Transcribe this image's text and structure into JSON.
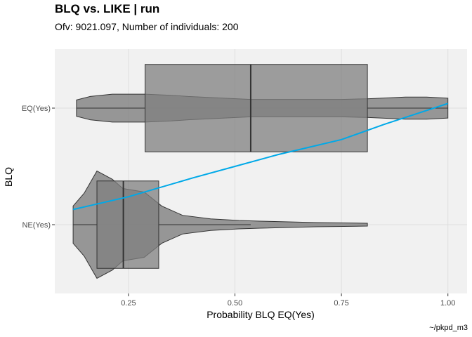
{
  "title": "BLQ vs. LIKE | run",
  "subtitle": "Ofv: 9021.097, Number of individuals: 200",
  "caption": "~/pkpd_m3",
  "colors": {
    "panel": "#f1f1f1",
    "grid": "#dedede",
    "fill": "#7f7f7f",
    "outline": "#333333",
    "trend": "#00a9e8"
  },
  "chart_data": {
    "type": "violin+boxplot",
    "title": "BLQ vs. LIKE | run",
    "xlabel": "Probability BLQ EQ(Yes)",
    "ylabel": "BLQ",
    "xlim": [
      0.077,
      1.045
    ],
    "xticks": [
      0.25,
      0.5,
      0.75,
      1.0
    ],
    "xtick_labels": [
      "0.25",
      "0.50",
      "0.75",
      "1.00"
    ],
    "categories": [
      "NE(Yes)",
      "EQ(Yes)"
    ],
    "grid": true,
    "boxes": [
      {
        "category": "NE(Yes)",
        "whisker_low": 0.12,
        "q1": 0.176,
        "median": 0.238,
        "q3": 0.321,
        "whisker_high": 0.537
      },
      {
        "category": "EQ(Yes)",
        "whisker_low": 0.128,
        "q1": 0.289,
        "median": 0.537,
        "q3": 0.811,
        "whisker_high": 1.0
      }
    ],
    "violins": [
      {
        "category": "NE(Yes)",
        "x": [
          0.12,
          0.146,
          0.176,
          0.212,
          0.237,
          0.287,
          0.328,
          0.377,
          0.443,
          0.509,
          0.559,
          0.691,
          0.811
        ],
        "density_halfwidth": [
          0.16,
          0.27,
          0.46,
          0.39,
          0.31,
          0.28,
          0.16,
          0.08,
          0.05,
          0.036,
          0.03,
          0.018,
          0.012
        ]
      },
      {
        "category": "EQ(Yes)",
        "x": [
          0.128,
          0.16,
          0.212,
          0.289,
          0.35,
          0.39,
          0.537,
          0.75,
          0.81,
          0.9,
          0.95,
          1.0
        ],
        "density_halfwidth": [
          0.07,
          0.1,
          0.12,
          0.12,
          0.11,
          0.1,
          0.075,
          0.075,
          0.08,
          0.095,
          0.095,
          0.085
        ]
      }
    ],
    "trend": {
      "x": [
        0.12,
        0.25,
        0.4,
        0.5,
        0.6,
        0.75,
        0.85,
        1.0
      ],
      "y": [
        1.13,
        1.24,
        1.4,
        1.5,
        1.6,
        1.73,
        1.86,
        2.04
      ]
    }
  }
}
